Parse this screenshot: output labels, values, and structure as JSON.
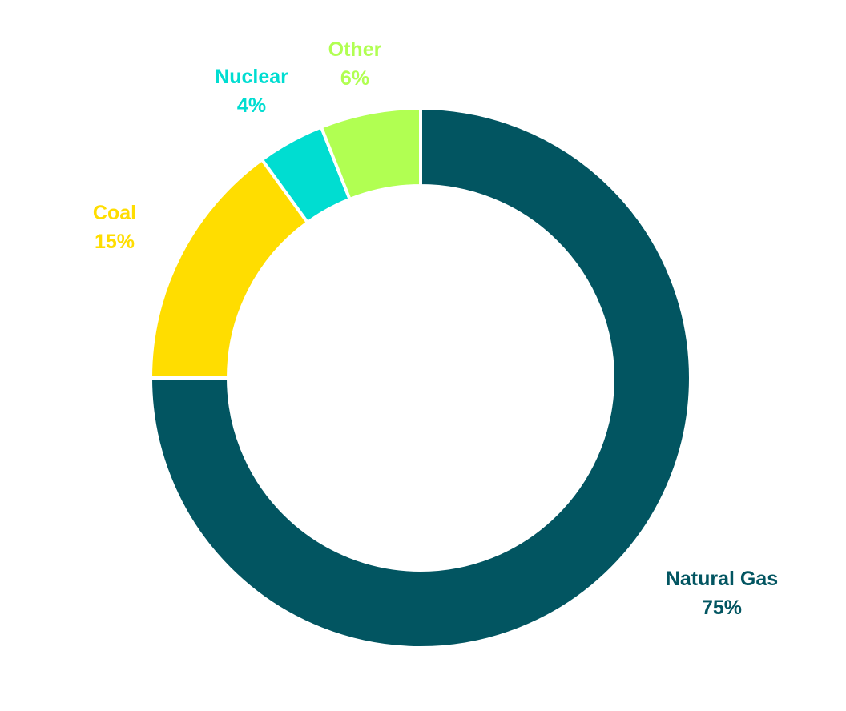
{
  "chart_data": {
    "type": "pie",
    "variant": "donut",
    "slices": [
      {
        "label": "Natural Gas",
        "value": 75,
        "display": "75%",
        "color": "#025561"
      },
      {
        "label": "Coal",
        "value": 15,
        "display": "15%",
        "color": "#FFDD00"
      },
      {
        "label": "Nuclear",
        "value": 4,
        "display": "4%",
        "color": "#00DDD1"
      },
      {
        "label": "Other",
        "value": 6,
        "display": "6%",
        "color": "#B1FF52"
      }
    ],
    "legend": "none",
    "separator_color": "#ffffff"
  }
}
